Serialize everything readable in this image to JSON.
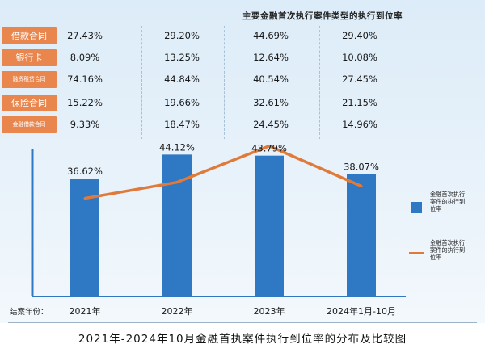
{
  "table": {
    "title": "主要金融首次执行案件类型的执行到位率",
    "rows": [
      {
        "label": "借款合同",
        "values": [
          "27.43%",
          "29.20%",
          "44.69%",
          "29.40%"
        ]
      },
      {
        "label": "银行卡",
        "values": [
          "8.09%",
          "13.25%",
          "12.64%",
          "10.08%"
        ]
      },
      {
        "label": "融资租赁合同",
        "values": [
          "74.16%",
          "44.84%",
          "40.54%",
          "27.45%"
        ]
      },
      {
        "label": "保险合同",
        "values": [
          "15.22%",
          "19.66%",
          "32.61%",
          "21.15%"
        ]
      },
      {
        "label": "金融借款合同",
        "values": [
          "9.33%",
          "18.47%",
          "24.45%",
          "14.96%"
        ]
      }
    ]
  },
  "axis_prefix": "结案年份：",
  "legend": {
    "bar_label": "金融首次执行案件的执行到位率",
    "line_label": "金融首次执行案件的执行到位率"
  },
  "caption": "2021年-2024年10月金融首执案件执行到位率的分布及比较图",
  "colors": {
    "bar": "#2f78c4",
    "line": "#e07a3a",
    "label_bg": "#e9864e"
  },
  "chart_data": {
    "type": "bar",
    "categories": [
      "2021年",
      "2022年",
      "2023年",
      "2024年1月-10月"
    ],
    "series": [
      {
        "name": "金融首次执行案件的执行到位率",
        "kind": "bar",
        "values": [
          36.62,
          44.12,
          43.79,
          38.07
        ]
      },
      {
        "name": "金融首次执行案件的执行到位率",
        "kind": "line",
        "values": [
          30.5,
          35.5,
          46.8,
          34.3
        ]
      }
    ],
    "data_labels": [
      "36.62%",
      "44.12%",
      "43.79%",
      "38.07%"
    ],
    "title": "2021年-2024年10月金融首执案件执行到位率的分布及比较图",
    "xlabel": "结案年份",
    "ylabel": "",
    "ylim": [
      0,
      52
    ],
    "legend_position": "right"
  }
}
